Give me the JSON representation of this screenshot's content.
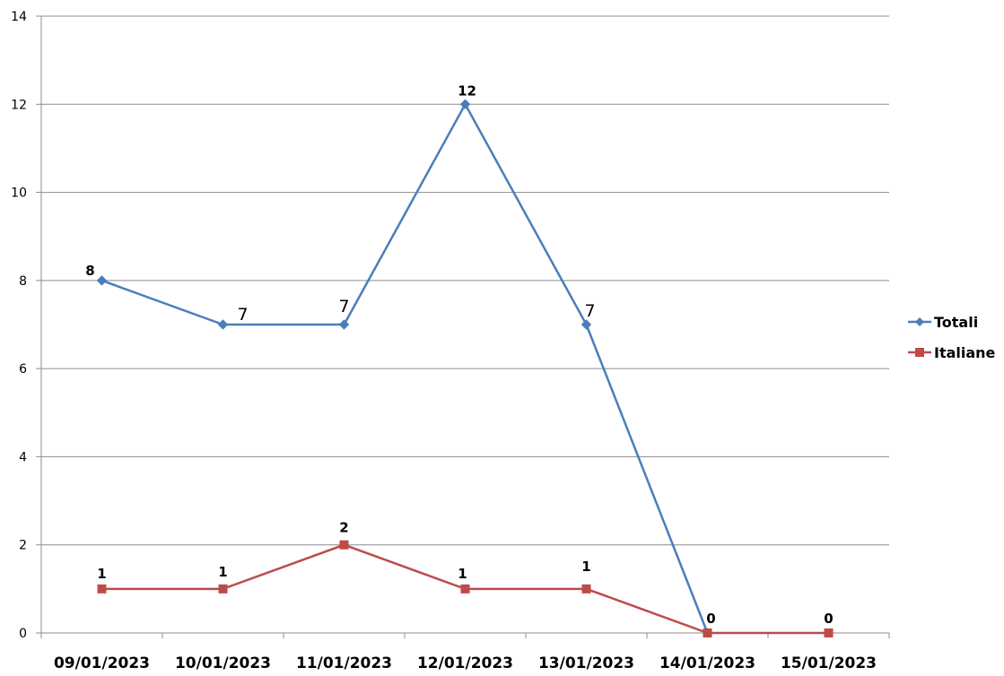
{
  "chart_data": {
    "type": "line",
    "title": "",
    "xlabel": "",
    "ylabel": "",
    "categories": [
      "09/01/2023",
      "10/01/2023",
      "11/01/2023",
      "12/01/2023",
      "13/01/2023",
      "14/01/2023",
      "15/01/2023"
    ],
    "ylim": [
      0,
      14
    ],
    "yticks": [
      0,
      2,
      4,
      6,
      8,
      10,
      12,
      14
    ],
    "grid": true,
    "legend_position": "right",
    "series": [
      {
        "name": "Totali",
        "color": "#4A7EBB",
        "marker": "diamond",
        "values": [
          8,
          7,
          7,
          12,
          7,
          0,
          null
        ],
        "data_labels": [
          "8",
          "7",
          "7",
          "12",
          "7",
          "",
          ""
        ]
      },
      {
        "name": "Italiane",
        "color": "#BE4B48",
        "marker": "square",
        "values": [
          1,
          1,
          2,
          1,
          1,
          0,
          0
        ],
        "data_labels": [
          "1",
          "1",
          "2",
          "1",
          "1",
          "0",
          "0"
        ]
      }
    ]
  }
}
